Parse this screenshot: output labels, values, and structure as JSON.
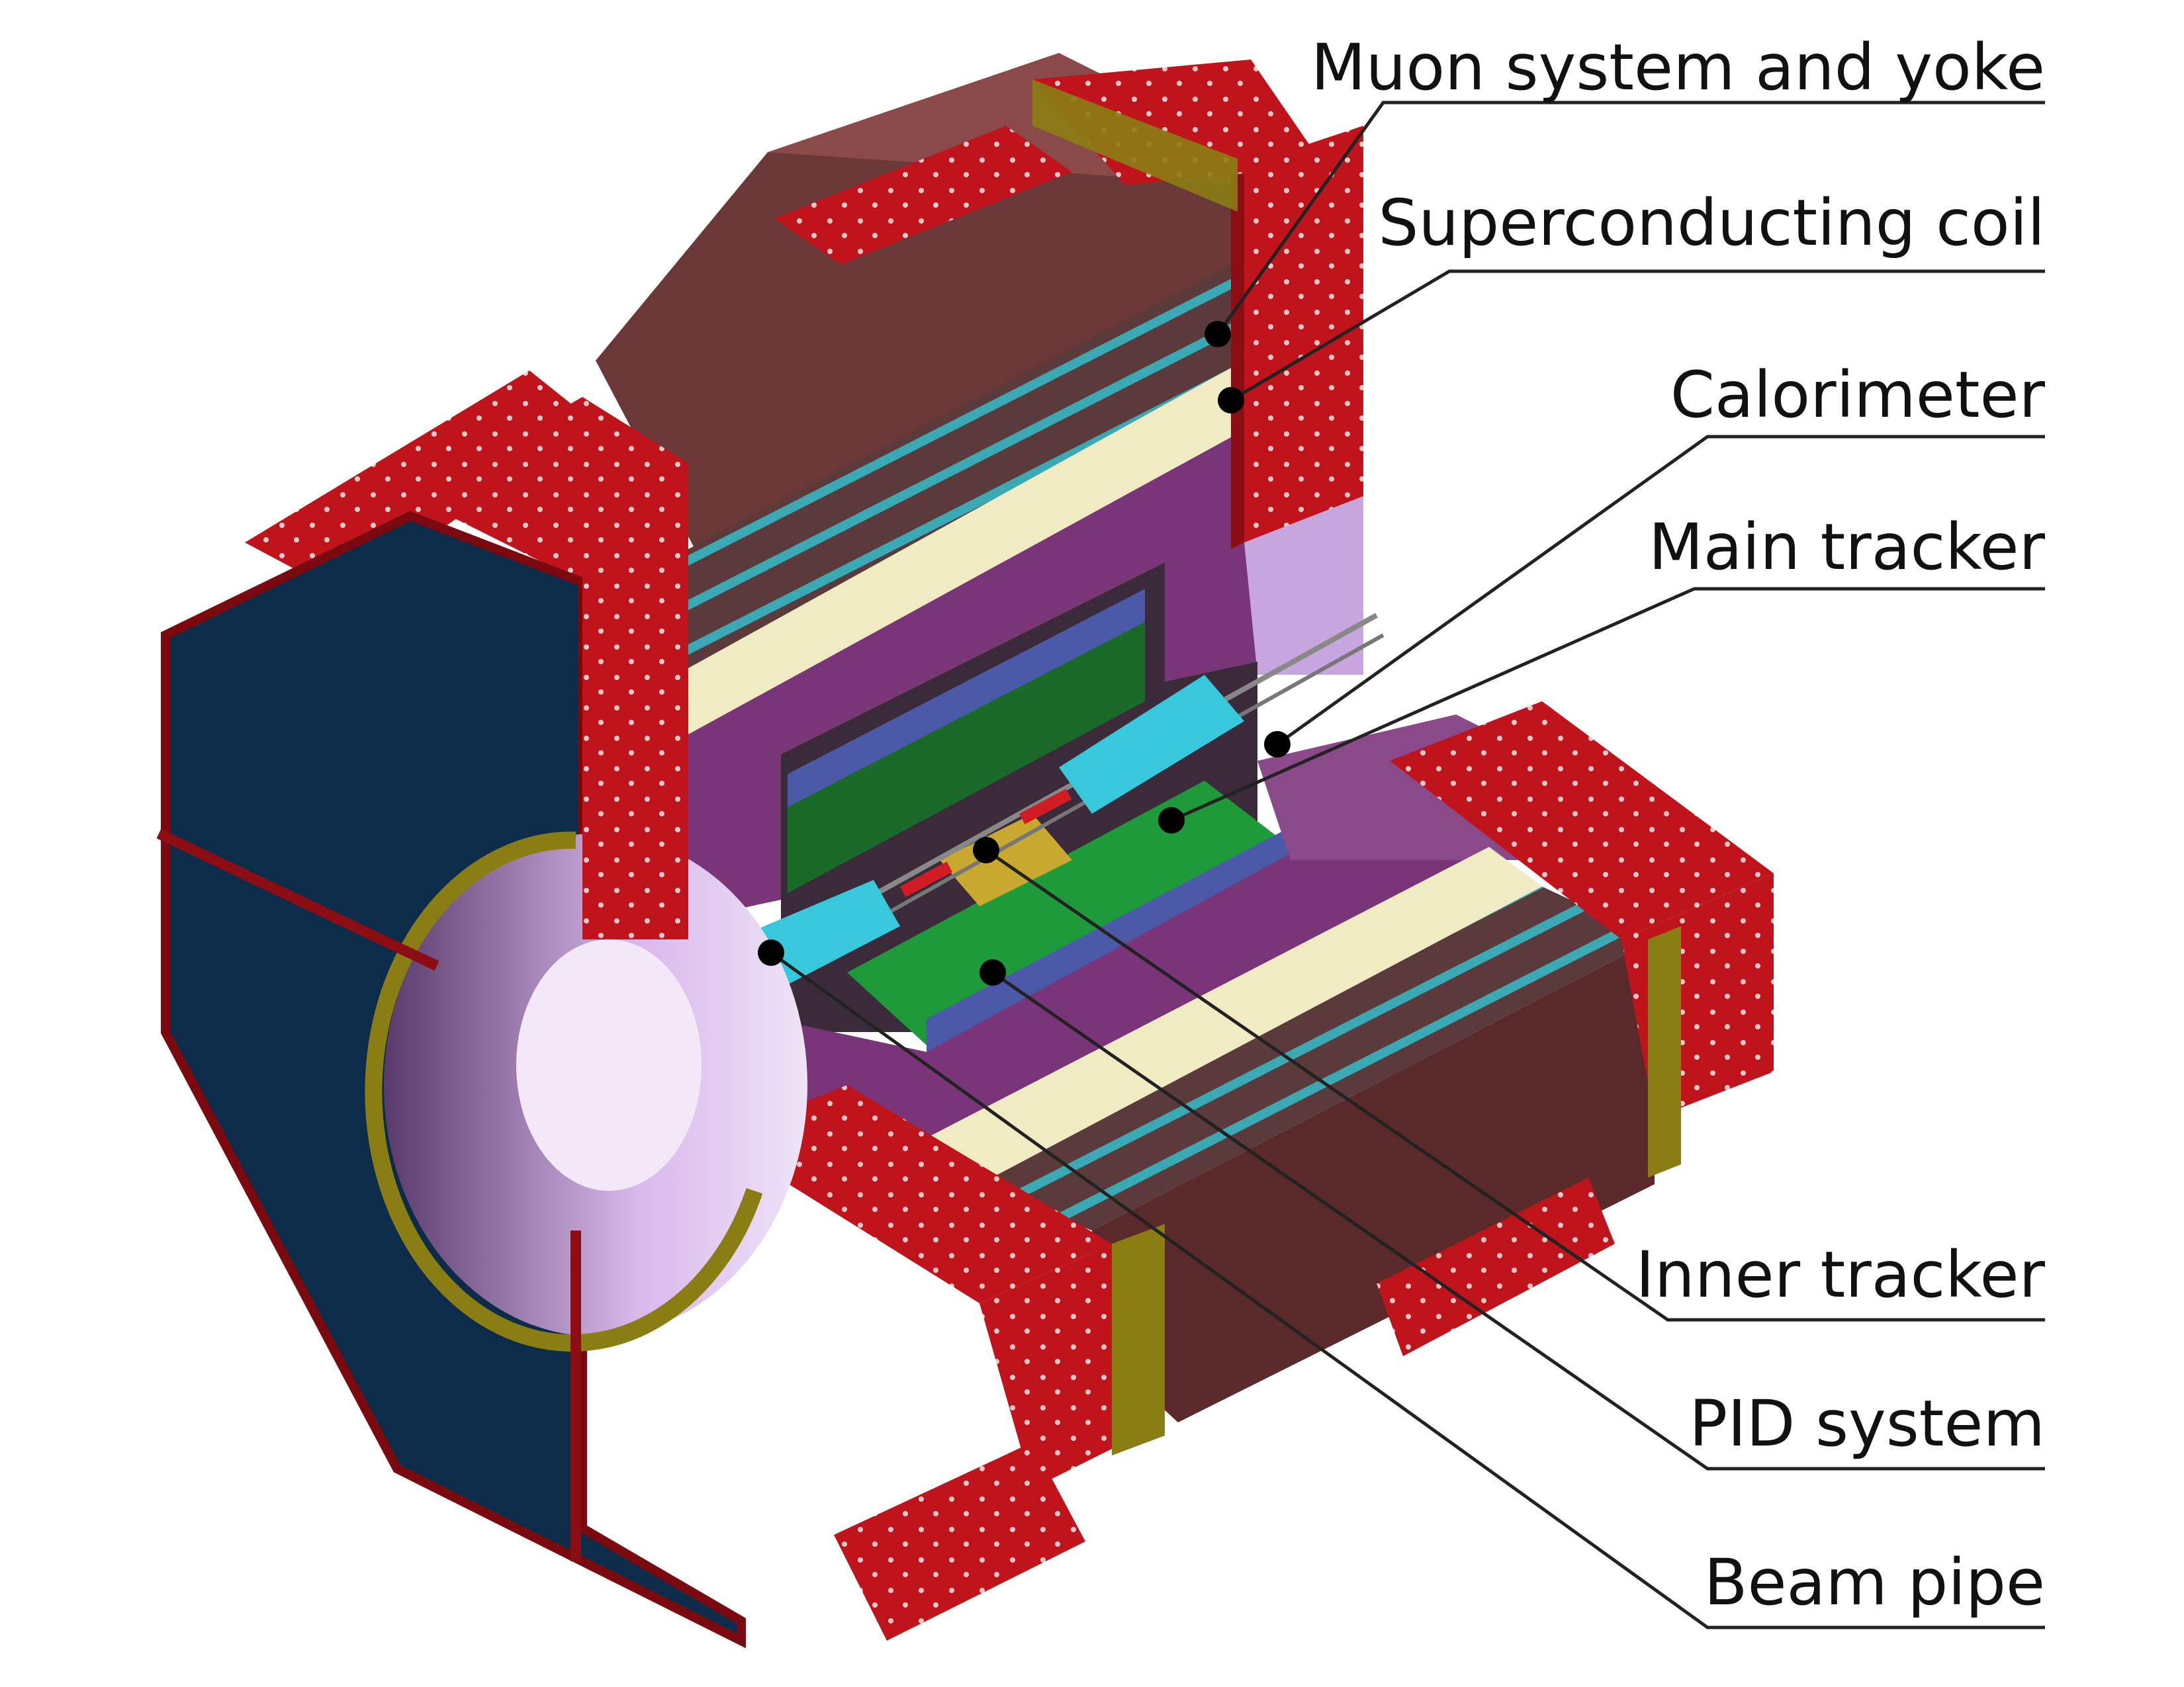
{
  "callouts": {
    "muon": "Muon system and yoke",
    "coil": "Superconducting coil",
    "calorimeter": "Calorimeter",
    "main_tracker": "Main tracker",
    "inner_tracker": "Inner tracker",
    "pid": "PID system",
    "beam_pipe": "Beam pipe"
  },
  "colors": {
    "yoke_red": "#c0141c",
    "endcap_navy": "#0c2c4a",
    "flange_olive": "#8a7d14",
    "coil_cream": "#f1ebc4",
    "calorimeter_purple": "#7a3478",
    "barrel_brown": "#6b3838",
    "muon_cyan": "#3aa9b4",
    "tracker_green": "#1f9a3a",
    "pid_cyan": "#38c8dc",
    "bore_lavender": "#c7a6e0"
  }
}
